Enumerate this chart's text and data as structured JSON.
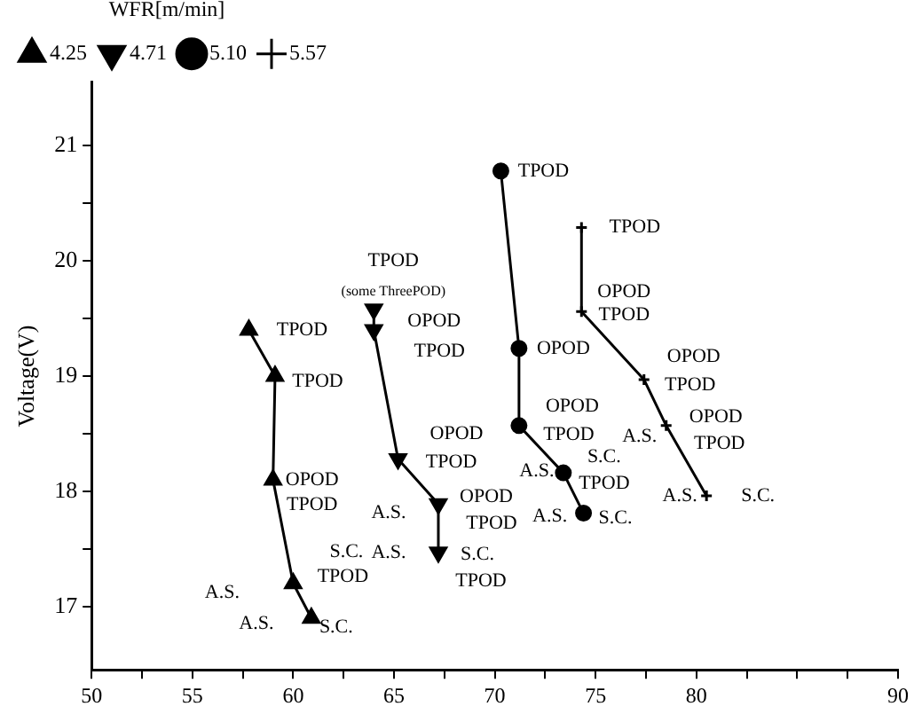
{
  "chart_data": {
    "type": "line",
    "ylabel": "Voltage(V)",
    "legend_title": "WFR[m/min]",
    "legend": "top left",
    "grid": false,
    "line_style": "solid",
    "xlim": [
      50,
      90
    ],
    "ylim": [
      16.45,
      21.55
    ],
    "xticks": [
      50,
      {
        "value": 52.5,
        "label": null
      },
      55,
      {
        "value": 57.5,
        "label": null
      },
      60,
      {
        "value": 62.5,
        "label": null
      },
      65,
      {
        "value": 67.5,
        "label": null
      },
      70,
      {
        "value": 72.5,
        "label": null
      },
      75,
      {
        "value": 77.5,
        "label": null
      },
      80,
      {
        "value": 82.5,
        "label": null
      },
      {
        "value": 85,
        "label": null
      },
      {
        "value": 87.5,
        "label": null
      },
      90
    ],
    "yticks": [
      17,
      {
        "value": 17.5,
        "label": null
      },
      18,
      {
        "value": 18.5,
        "label": null
      },
      19,
      {
        "value": 19.5,
        "label": null
      },
      20,
      {
        "value": 20.5,
        "label": null
      },
      21
    ],
    "series": [
      {
        "name": "4.25",
        "color": "#000000",
        "marker": "triangle",
        "x": [
          57.8,
          59.1,
          59.0,
          60.0,
          60.9
        ],
        "values": [
          19.4,
          19.0,
          18.1,
          17.2,
          16.9
        ]
      },
      {
        "name": "4.71",
        "color": "#000000",
        "marker": "triangle-down",
        "x": [
          64.0,
          64.0,
          65.2,
          67.2,
          67.2
        ],
        "values": [
          19.58,
          19.4,
          18.28,
          17.89,
          17.47
        ]
      },
      {
        "name": "5.10",
        "color": "#000000",
        "marker": "circle",
        "x": [
          70.3,
          71.2,
          71.2,
          73.4,
          74.4
        ],
        "values": [
          20.78,
          19.24,
          18.57,
          18.16,
          17.81
        ]
      },
      {
        "name": "5.57",
        "color": "#000000",
        "marker": "cross",
        "x": [
          74.3,
          74.3,
          77.4,
          78.5,
          80.5
        ],
        "values": [
          20.29,
          19.56,
          18.97,
          18.57,
          17.96
        ]
      }
    ],
    "annotations": [
      {
        "text": "TPOD",
        "x": 57.8,
        "y": 19.4
      },
      {
        "text": "TPOD",
        "x": 59.1,
        "y": 19.0
      },
      {
        "text": "OPOD",
        "x": 59.0,
        "y": 18.1
      },
      {
        "text": "TPOD",
        "x": 59.0,
        "y": 18.1
      },
      {
        "text": "S.C.",
        "x": 60.0,
        "y": 17.2
      },
      {
        "text": "TPOD",
        "x": 60.0,
        "y": 17.2
      },
      {
        "text": "A.S.",
        "x": 60.0,
        "y": 17.2
      },
      {
        "text": "A.S.",
        "x": 60.9,
        "y": 16.9
      },
      {
        "text": "S.C.",
        "x": 60.9,
        "y": 16.9
      },
      {
        "text": "TPOD",
        "x": 64.0,
        "y": 19.58
      },
      {
        "text": "(some ThreePOD)",
        "x": 64.0,
        "y": 19.58
      },
      {
        "text": "OPOD",
        "x": 64.0,
        "y": 19.4
      },
      {
        "text": "TPOD",
        "x": 64.0,
        "y": 19.4
      },
      {
        "text": "OPOD",
        "x": 65.2,
        "y": 18.28
      },
      {
        "text": "TPOD",
        "x": 65.2,
        "y": 18.28
      },
      {
        "text": "OPOD",
        "x": 67.2,
        "y": 17.89
      },
      {
        "text": "TPOD",
        "x": 67.2,
        "y": 17.89
      },
      {
        "text": "A.S.",
        "x": 67.2,
        "y": 17.89
      },
      {
        "text": "A.S.",
        "x": 67.2,
        "y": 17.47
      },
      {
        "text": "S.C.",
        "x": 67.2,
        "y": 17.47
      },
      {
        "text": "TPOD",
        "x": 67.2,
        "y": 17.47
      },
      {
        "text": "TPOD",
        "x": 70.3,
        "y": 20.78
      },
      {
        "text": "OPOD",
        "x": 71.2,
        "y": 19.24
      },
      {
        "text": "OPOD",
        "x": 71.2,
        "y": 18.57
      },
      {
        "text": "TPOD",
        "x": 71.2,
        "y": 18.57
      },
      {
        "text": "A.S.",
        "x": 73.4,
        "y": 18.16
      },
      {
        "text": "S.C.",
        "x": 73.4,
        "y": 18.16
      },
      {
        "text": "TPOD",
        "x": 73.4,
        "y": 18.16
      },
      {
        "text": "A.S.",
        "x": 74.4,
        "y": 17.81
      },
      {
        "text": "S.C.",
        "x": 74.4,
        "y": 17.81
      },
      {
        "text": "TPOD",
        "x": 74.3,
        "y": 20.29
      },
      {
        "text": "OPOD",
        "x": 74.3,
        "y": 19.56
      },
      {
        "text": "TPOD",
        "x": 74.3,
        "y": 19.56
      },
      {
        "text": "OPOD",
        "x": 77.4,
        "y": 18.97
      },
      {
        "text": "TPOD",
        "x": 77.4,
        "y": 18.97
      },
      {
        "text": "A.S.",
        "x": 78.5,
        "y": 18.57
      },
      {
        "text": "OPOD",
        "x": 78.5,
        "y": 18.57
      },
      {
        "text": "TPOD",
        "x": 78.5,
        "y": 18.57
      },
      {
        "text": "A.S.",
        "x": 80.5,
        "y": 17.96
      },
      {
        "text": "S.C.",
        "x": 80.5,
        "y": 17.96
      }
    ]
  }
}
